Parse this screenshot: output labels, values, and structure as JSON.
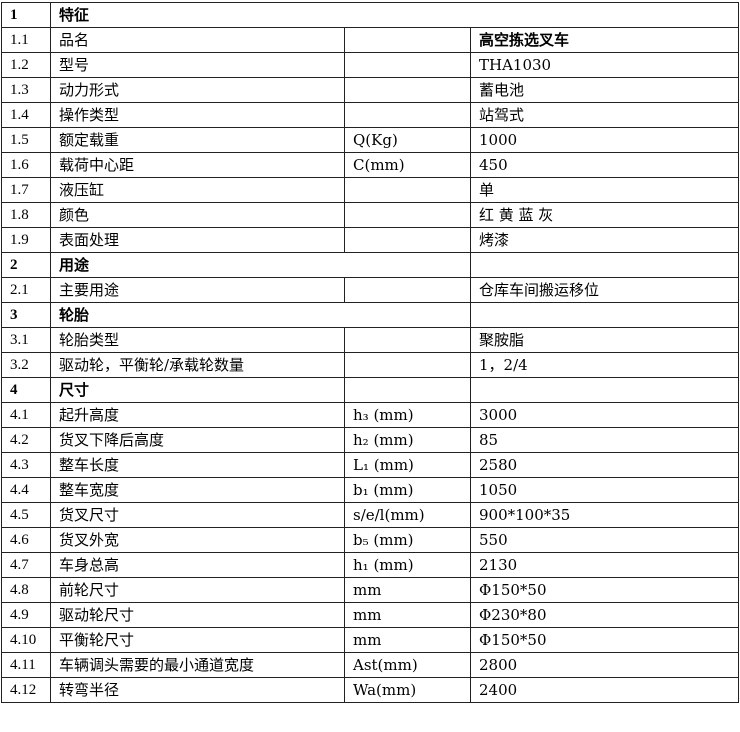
{
  "sections": [
    {
      "no": "1",
      "title": "特征",
      "rows": [
        {
          "no": "1.1",
          "name": "品名",
          "param": "",
          "value": "高空拣选叉车"
        },
        {
          "no": "1.2",
          "name": "型号",
          "param": "",
          "value": "THA1030"
        },
        {
          "no": "1.3",
          "name": "动力形式",
          "param": "",
          "value": "蓄电池"
        },
        {
          "no": "1.4",
          "name": "操作类型",
          "param": "",
          "value": "站驾式"
        },
        {
          "no": "1.5",
          "name": "额定载重",
          "param": "Q(Kg)",
          "value": "1000"
        },
        {
          "no": "1.6",
          "name": "载荷中心距",
          "param": "C(mm)",
          "value": "450"
        },
        {
          "no": "1.7",
          "name": "液压缸",
          "param": "",
          "value": "单"
        },
        {
          "no": "1.8",
          "name": "颜色",
          "param": "",
          "value": "红 黄 蓝 灰"
        },
        {
          "no": "1.9",
          "name": "表面处理",
          "param": "",
          "value": "烤漆"
        }
      ]
    },
    {
      "no": "2",
      "title": "用途",
      "rows": [
        {
          "no": "2.1",
          "name": "主要用途",
          "param": "",
          "value": "仓库车间搬运移位"
        }
      ]
    },
    {
      "no": "3",
      "title": "轮胎",
      "rows": [
        {
          "no": "3.1",
          "name": "轮胎类型",
          "param": "",
          "value": "聚胺脂"
        },
        {
          "no": "3.2",
          "name": "驱动轮，平衡轮/承载轮数量",
          "param": "",
          "value": "1，2/4"
        }
      ]
    },
    {
      "no": "4",
      "title": "尺寸",
      "rows": [
        {
          "no": "4.1",
          "name": "起升高度",
          "param": "h₃ (mm)",
          "value": "3000"
        },
        {
          "no": "4.2",
          "name": "货叉下降后高度",
          "param": "h₂ (mm)",
          "value": "85"
        },
        {
          "no": "4.3",
          "name": "整车长度",
          "param": "L₁ (mm)",
          "value": "2580"
        },
        {
          "no": "4.4",
          "name": "整车宽度",
          "param": "b₁ (mm)",
          "value": "1050"
        },
        {
          "no": "4.5",
          "name": "货叉尺寸",
          "param": "s/e/l(mm)",
          "value": "900*100*35"
        },
        {
          "no": "4.6",
          "name": "货叉外宽",
          "param": "b₅ (mm)",
          "value": "550"
        },
        {
          "no": "4.7",
          "name": "车身总高",
          "param": "h₁ (mm)",
          "value": "2130"
        },
        {
          "no": "4.8",
          "name": "前轮尺寸",
          "param": "mm",
          "value": "Φ150*50"
        },
        {
          "no": "4.9",
          "name": "驱动轮尺寸",
          "param": "mm",
          "value": "Φ230*80"
        },
        {
          "no": "4.10",
          "name": "平衡轮尺寸",
          "param": "mm",
          "value": "Φ150*50"
        },
        {
          "no": "4.11",
          "name": "车辆调头需要的最小通道宽度",
          "param": "Ast(mm)",
          "value": "2800"
        },
        {
          "no": "4.12",
          "name": "转弯半径",
          "param": "Wa(mm)",
          "value": "2400"
        }
      ]
    }
  ]
}
